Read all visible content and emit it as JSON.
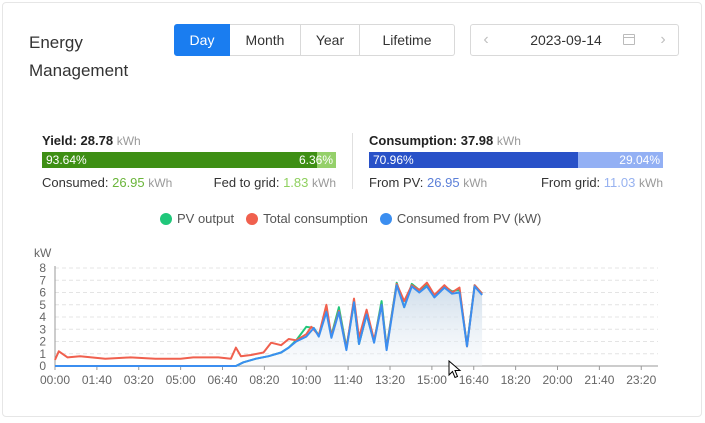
{
  "header": {
    "title_line1": "Energy",
    "title_line2": "Management",
    "tabs": [
      "Day",
      "Month",
      "Year",
      "Lifetime"
    ],
    "active_tab": "Day",
    "date": "2023-09-14"
  },
  "yield": {
    "label": "Yield:",
    "value": "28.78",
    "unit": "kWh",
    "left_pct": "93.64%",
    "right_pct": "6.36%",
    "left_share": 0.9364,
    "consumed_label": "Consumed:",
    "consumed_value": "26.95",
    "consumed_unit": "kWh",
    "fed_label": "Fed to grid:",
    "fed_value": "1.83",
    "fed_unit": "kWh",
    "colors": {
      "left": "#3e8f14",
      "right": "#95d06a"
    }
  },
  "consumption": {
    "label": "Consumption:",
    "value": "37.98",
    "unit": "kWh",
    "left_pct": "70.96%",
    "right_pct": "29.04%",
    "left_share": 0.7096,
    "pv_label": "From PV:",
    "pv_value": "26.95",
    "pv_unit": "kWh",
    "grid_label": "From grid:",
    "grid_value": "11.03",
    "grid_unit": "kWh",
    "colors": {
      "left": "#2851c8",
      "right": "#93b0f4"
    }
  },
  "legend": {
    "pv": "PV output",
    "total": "Total consumption",
    "consumed": "Consumed from PV (kW)",
    "colors": {
      "pv": "#20c77a",
      "total": "#f0604e",
      "consumed": "#3b8ef0"
    }
  },
  "chart_data": {
    "type": "line",
    "ylabel": "kW",
    "ylim": [
      0,
      8
    ],
    "yticks": [
      "0",
      "1",
      "2",
      "3",
      "4",
      "5",
      "6",
      "7",
      "8"
    ],
    "xticks": [
      "00:00",
      "01:40",
      "03:20",
      "05:00",
      "06:40",
      "08:20",
      "10:00",
      "11:40",
      "13:20",
      "15:00",
      "16:40",
      "18:20",
      "20:00",
      "21:40",
      "23:20"
    ],
    "grid": true,
    "x_unit": "hours",
    "series": [
      {
        "name": "PV output",
        "color": "#20c77a",
        "points": [
          [
            0,
            0
          ],
          [
            7.2,
            0
          ],
          [
            7.5,
            0.3
          ],
          [
            8.0,
            0.6
          ],
          [
            8.5,
            0.8
          ],
          [
            9.0,
            1.1
          ],
          [
            9.3,
            1.5
          ],
          [
            9.6,
            2.1
          ],
          [
            10.0,
            3.2
          ],
          [
            10.3,
            3.1
          ],
          [
            10.5,
            2.5
          ],
          [
            10.8,
            4.5
          ],
          [
            11.0,
            2.5
          ],
          [
            11.3,
            4.8
          ],
          [
            11.6,
            1.5
          ],
          [
            11.9,
            5.2
          ],
          [
            12.1,
            1.8
          ],
          [
            12.4,
            4.2
          ],
          [
            12.7,
            2.0
          ],
          [
            13.0,
            5.3
          ],
          [
            13.2,
            1.5
          ],
          [
            13.6,
            6.8
          ],
          [
            13.9,
            4.8
          ],
          [
            14.2,
            6.7
          ],
          [
            14.5,
            6.2
          ],
          [
            14.8,
            6.6
          ],
          [
            15.1,
            5.7
          ],
          [
            15.5,
            6.5
          ],
          [
            15.8,
            6.1
          ],
          [
            16.1,
            6.2
          ],
          [
            16.4,
            1.7
          ],
          [
            16.7,
            6.6
          ],
          [
            17.0,
            5.9
          ]
        ]
      },
      {
        "name": "Total consumption",
        "color": "#f0604e",
        "points": [
          [
            0,
            0.5
          ],
          [
            0.15,
            1.2
          ],
          [
            0.5,
            0.7
          ],
          [
            1,
            0.8
          ],
          [
            2,
            0.6
          ],
          [
            3,
            0.7
          ],
          [
            4,
            0.6
          ],
          [
            5,
            0.6
          ],
          [
            5.5,
            0.7
          ],
          [
            6.5,
            0.7
          ],
          [
            7.0,
            0.6
          ],
          [
            7.2,
            1.5
          ],
          [
            7.4,
            0.8
          ],
          [
            7.8,
            0.9
          ],
          [
            8.3,
            1.1
          ],
          [
            8.6,
            1.9
          ],
          [
            9.0,
            1.7
          ],
          [
            9.3,
            2.2
          ],
          [
            9.6,
            2.1
          ],
          [
            10.0,
            2.6
          ],
          [
            10.2,
            3.2
          ],
          [
            10.5,
            2.5
          ],
          [
            10.8,
            5.0
          ],
          [
            11.0,
            2.4
          ],
          [
            11.3,
            4.5
          ],
          [
            11.6,
            1.4
          ],
          [
            11.9,
            5.5
          ],
          [
            12.1,
            2.3
          ],
          [
            12.4,
            4.6
          ],
          [
            12.7,
            2.1
          ],
          [
            13.0,
            5.0
          ],
          [
            13.2,
            1.4
          ],
          [
            13.6,
            6.7
          ],
          [
            13.9,
            5.3
          ],
          [
            14.2,
            6.6
          ],
          [
            14.5,
            6.2
          ],
          [
            14.8,
            6.8
          ],
          [
            15.1,
            5.8
          ],
          [
            15.5,
            6.6
          ],
          [
            15.8,
            6.0
          ],
          [
            16.1,
            6.4
          ],
          [
            16.4,
            1.6
          ],
          [
            16.7,
            6.6
          ],
          [
            17.0,
            5.9
          ]
        ]
      },
      {
        "name": "Consumed from PV (kW)",
        "color": "#3b8ef0",
        "points": [
          [
            0,
            0
          ],
          [
            7.2,
            0
          ],
          [
            7.5,
            0.3
          ],
          [
            8.0,
            0.6
          ],
          [
            8.5,
            0.8
          ],
          [
            9.0,
            1.1
          ],
          [
            9.3,
            1.5
          ],
          [
            9.6,
            2.0
          ],
          [
            10.0,
            2.4
          ],
          [
            10.3,
            3.1
          ],
          [
            10.5,
            2.4
          ],
          [
            10.8,
            4.4
          ],
          [
            11.0,
            2.3
          ],
          [
            11.3,
            4.4
          ],
          [
            11.6,
            1.3
          ],
          [
            11.9,
            5.2
          ],
          [
            12.1,
            1.8
          ],
          [
            12.4,
            4.2
          ],
          [
            12.7,
            1.9
          ],
          [
            13.0,
            5.0
          ],
          [
            13.2,
            1.3
          ],
          [
            13.6,
            6.6
          ],
          [
            13.9,
            4.8
          ],
          [
            14.2,
            6.5
          ],
          [
            14.5,
            6.0
          ],
          [
            14.8,
            6.5
          ],
          [
            15.1,
            5.6
          ],
          [
            15.5,
            6.4
          ],
          [
            15.8,
            5.9
          ],
          [
            16.1,
            6.0
          ],
          [
            16.4,
            1.6
          ],
          [
            16.7,
            6.5
          ],
          [
            17.0,
            5.8
          ]
        ]
      }
    ]
  }
}
